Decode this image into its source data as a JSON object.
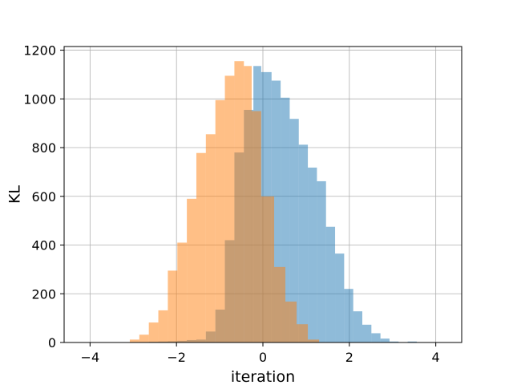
{
  "chart_data": {
    "type": "bar",
    "xlabel": "iteration",
    "ylabel": "KL",
    "xlim": [
      -4.6,
      4.6
    ],
    "ylim": [
      0,
      1215
    ],
    "xticks": [
      -4,
      -2,
      0,
      2,
      4
    ],
    "xtick_labels": [
      "−4",
      "−2",
      "0",
      "2",
      "4"
    ],
    "yticks": [
      0,
      200,
      400,
      600,
      800,
      1000,
      1200
    ],
    "ytick_labels": [
      "0",
      "200",
      "400",
      "600",
      "800",
      "1000",
      "1200"
    ],
    "grid": true,
    "series": [
      {
        "color": "#1f77b4",
        "alpha": 0.5,
        "bins": [
          [
            -3.3,
            -3.08,
            1
          ],
          [
            -2.86,
            -2.64,
            2
          ],
          [
            -2.64,
            -2.42,
            3
          ],
          [
            -2.42,
            -2.2,
            4
          ],
          [
            -2.2,
            -1.98,
            5
          ],
          [
            -1.98,
            -1.76,
            7
          ],
          [
            -1.76,
            -1.54,
            10
          ],
          [
            -1.54,
            -1.32,
            12
          ],
          [
            -1.32,
            -1.1,
            45
          ],
          [
            -1.1,
            -0.88,
            135
          ],
          [
            -0.88,
            -0.66,
            420
          ],
          [
            -0.66,
            -0.44,
            780
          ],
          [
            -0.44,
            -0.22,
            955
          ],
          [
            -0.22,
            -0.04,
            1135
          ],
          [
            -0.04,
            0.2,
            1110
          ],
          [
            0.2,
            0.41,
            1075
          ],
          [
            0.41,
            0.62,
            1005
          ],
          [
            0.62,
            0.83,
            918
          ],
          [
            0.83,
            1.04,
            812
          ],
          [
            1.04,
            1.25,
            718
          ],
          [
            1.25,
            1.46,
            662
          ],
          [
            1.46,
            1.67,
            475
          ],
          [
            1.67,
            1.88,
            365
          ],
          [
            1.88,
            2.09,
            220
          ],
          [
            2.09,
            2.3,
            128
          ],
          [
            2.3,
            2.51,
            73
          ],
          [
            2.51,
            2.72,
            38
          ],
          [
            2.72,
            2.93,
            16
          ],
          [
            2.93,
            3.14,
            4
          ],
          [
            3.14,
            3.35,
            1
          ],
          [
            3.35,
            3.56,
            4
          ]
        ]
      },
      {
        "color": "#ff7f0e",
        "alpha": 0.5,
        "bins": [
          [
            -3.3,
            -3.08,
            1
          ],
          [
            -3.08,
            -2.86,
            12
          ],
          [
            -2.86,
            -2.64,
            32
          ],
          [
            -2.64,
            -2.42,
            82
          ],
          [
            -2.42,
            -2.2,
            132
          ],
          [
            -2.2,
            -1.98,
            295
          ],
          [
            -1.98,
            -1.76,
            410
          ],
          [
            -1.76,
            -1.54,
            590
          ],
          [
            -1.54,
            -1.32,
            778
          ],
          [
            -1.32,
            -1.1,
            855
          ],
          [
            -1.1,
            -0.88,
            995
          ],
          [
            -0.88,
            -0.66,
            1095
          ],
          [
            -0.66,
            -0.44,
            1155
          ],
          [
            -0.44,
            -0.26,
            1135
          ],
          [
            -0.26,
            -0.04,
            950
          ],
          [
            -0.04,
            0.26,
            600
          ],
          [
            0.26,
            0.52,
            310
          ],
          [
            0.52,
            0.78,
            168
          ],
          [
            0.78,
            1.04,
            75
          ],
          [
            1.04,
            1.3,
            12
          ]
        ]
      }
    ]
  }
}
